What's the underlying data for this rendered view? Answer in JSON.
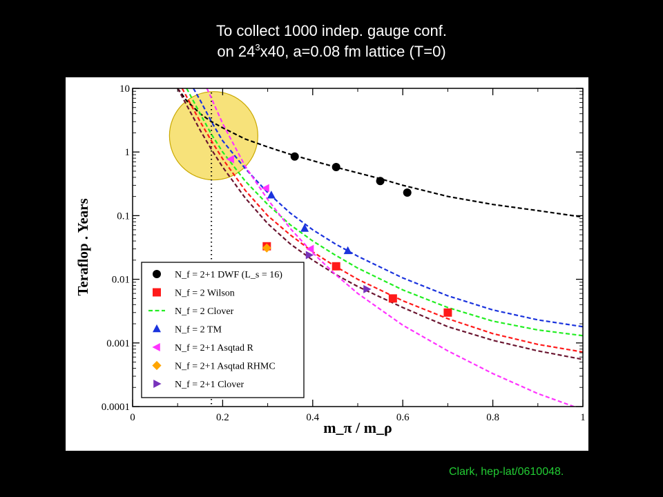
{
  "title": {
    "line1": "To collect 1000 indep. gauge conf.",
    "line2_pre": "on 24",
    "line2_sup": "3",
    "line2_post": "x40, a=0.08 fm lattice (T=0)"
  },
  "citation": "Clark, hep-lat/0610048.",
  "colors": {
    "background": "#000000",
    "plot_bg": "#ffffff",
    "dwf": "#000000",
    "wilson": "#ff1a1a",
    "clover2": "#22ee22",
    "tm": "#1a33dd",
    "asqtad_r": "#ff33ff",
    "asqtad_rhmc": "#ffa500",
    "clover21": "#7733bb",
    "clover21_curve": "#6a1530",
    "highlight_fill": "#f7e27a",
    "highlight_stroke": "#c9a800",
    "citation": "#22cc33"
  },
  "chart_data": {
    "type": "scatter",
    "xlabel": "m_π / m_ρ",
    "ylabel": "Teraflop . Years",
    "xlim": [
      0,
      1
    ],
    "ylim": [
      0.0001,
      10
    ],
    "yscale": "log",
    "x_ticks": [
      "0",
      "0.2",
      "0.4",
      "0.6",
      "0.8",
      "1"
    ],
    "y_ticks": [
      "10",
      "1",
      "0.1",
      "0.01",
      "0.001",
      "0.0001"
    ],
    "legend_position": "bottom-left",
    "reference_line_x": 0.175,
    "highlight_circle": {
      "x": 0.18,
      "y": 1.8
    },
    "legend": [
      {
        "marker": "circle",
        "color": "#000000",
        "label": "N_f = 2+1 DWF (L_s = 16)"
      },
      {
        "marker": "square",
        "color": "#ff1a1a",
        "label": "N_f = 2 Wilson"
      },
      {
        "marker": "dash",
        "color": "#22ee22",
        "label": "N_f = 2 Clover"
      },
      {
        "marker": "triangle-up",
        "color": "#1a33dd",
        "label": "N_f = 2 TM"
      },
      {
        "marker": "triangle-left",
        "color": "#ff33ff",
        "label": "N_f = 2+1 Asqtad R"
      },
      {
        "marker": "diamond",
        "color": "#ffa500",
        "label": "N_f = 2+1 Asqtad RHMC"
      },
      {
        "marker": "triangle-right",
        "color": "#7733bb",
        "label": "N_f = 2+1 Clover"
      }
    ],
    "series": [
      {
        "name": "N_f = 2+1 DWF (L_s = 16)",
        "marker": "circle",
        "color": "#000000",
        "points": [
          [
            0.36,
            0.85
          ],
          [
            0.452,
            0.58
          ],
          [
            0.55,
            0.35
          ],
          [
            0.61,
            0.23
          ]
        ]
      },
      {
        "name": "N_f = 2 Wilson",
        "marker": "square",
        "color": "#ff1a1a",
        "points": [
          [
            0.298,
            0.033
          ],
          [
            0.452,
            0.016
          ],
          [
            0.578,
            0.005
          ],
          [
            0.7,
            0.003
          ]
        ]
      },
      {
        "name": "N_f = 2 TM",
        "marker": "triangle-up",
        "color": "#1a33dd",
        "points": [
          [
            0.308,
            0.21
          ],
          [
            0.382,
            0.063
          ],
          [
            0.478,
            0.028
          ]
        ]
      },
      {
        "name": "N_f = 2+1 Asqtad R",
        "marker": "triangle-left",
        "color": "#ff33ff",
        "points": [
          [
            0.218,
            0.77
          ],
          [
            0.296,
            0.27
          ],
          [
            0.395,
            0.03
          ]
        ]
      },
      {
        "name": "N_f = 2+1 Asqtad RHMC",
        "marker": "diamond",
        "color": "#ffa500",
        "points": [
          [
            0.298,
            0.031
          ]
        ]
      },
      {
        "name": "N_f = 2+1 Clover",
        "marker": "triangle-right",
        "color": "#7733bb",
        "points": [
          [
            0.392,
            0.024
          ],
          [
            0.52,
            0.007
          ]
        ]
      }
    ],
    "fit_curves": [
      {
        "color": "#000000",
        "points": [
          [
            0.1,
            10
          ],
          [
            0.12,
            6.4
          ],
          [
            0.15,
            4.0
          ],
          [
            0.175,
            3.0
          ],
          [
            0.2,
            2.4
          ],
          [
            0.25,
            1.6
          ],
          [
            0.3,
            1.2
          ],
          [
            0.35,
            0.92
          ],
          [
            0.4,
            0.73
          ],
          [
            0.45,
            0.58
          ],
          [
            0.5,
            0.47
          ],
          [
            0.55,
            0.38
          ],
          [
            0.6,
            0.3
          ],
          [
            0.7,
            0.2
          ],
          [
            0.8,
            0.15
          ],
          [
            0.9,
            0.12
          ],
          [
            1.0,
            0.095
          ]
        ]
      },
      {
        "color": "#1a33dd",
        "points": [
          [
            0.135,
            10
          ],
          [
            0.15,
            6.5
          ],
          [
            0.175,
            3.0
          ],
          [
            0.2,
            1.5
          ],
          [
            0.25,
            0.55
          ],
          [
            0.3,
            0.23
          ],
          [
            0.35,
            0.11
          ],
          [
            0.4,
            0.06
          ],
          [
            0.45,
            0.036
          ],
          [
            0.5,
            0.023
          ],
          [
            0.6,
            0.0105
          ],
          [
            0.7,
            0.0055
          ],
          [
            0.8,
            0.0033
          ],
          [
            0.9,
            0.0023
          ],
          [
            1.0,
            0.0018
          ]
        ]
      },
      {
        "color": "#22ee22",
        "points": [
          [
            0.12,
            10
          ],
          [
            0.15,
            4.0
          ],
          [
            0.175,
            1.9
          ],
          [
            0.2,
            1.0
          ],
          [
            0.25,
            0.35
          ],
          [
            0.3,
            0.15
          ],
          [
            0.35,
            0.072
          ],
          [
            0.4,
            0.04
          ],
          [
            0.45,
            0.024
          ],
          [
            0.5,
            0.015
          ],
          [
            0.6,
            0.0068
          ],
          [
            0.7,
            0.0036
          ],
          [
            0.8,
            0.0022
          ],
          [
            0.9,
            0.0016
          ],
          [
            1.0,
            0.0013
          ]
        ]
      },
      {
        "color": "#ff1a1a",
        "points": [
          [
            0.11,
            10
          ],
          [
            0.15,
            3.0
          ],
          [
            0.175,
            1.5
          ],
          [
            0.2,
            0.78
          ],
          [
            0.25,
            0.25
          ],
          [
            0.3,
            0.1
          ],
          [
            0.35,
            0.05
          ],
          [
            0.4,
            0.027
          ],
          [
            0.45,
            0.016
          ],
          [
            0.5,
            0.01
          ],
          [
            0.6,
            0.0046
          ],
          [
            0.7,
            0.0024
          ],
          [
            0.8,
            0.0014
          ],
          [
            0.9,
            0.00095
          ],
          [
            1.0,
            0.00072
          ]
        ]
      },
      {
        "color": "#6a1530",
        "points": [
          [
            0.1,
            10
          ],
          [
            0.15,
            2.2
          ],
          [
            0.175,
            1.1
          ],
          [
            0.2,
            0.58
          ],
          [
            0.25,
            0.19
          ],
          [
            0.3,
            0.075
          ],
          [
            0.35,
            0.036
          ],
          [
            0.4,
            0.02
          ],
          [
            0.45,
            0.012
          ],
          [
            0.5,
            0.0077
          ],
          [
            0.6,
            0.0036
          ],
          [
            0.7,
            0.0018
          ],
          [
            0.8,
            0.0011
          ],
          [
            0.9,
            0.00075
          ],
          [
            1.0,
            0.00055
          ]
        ]
      },
      {
        "color": "#ff33ff",
        "points": [
          [
            0.165,
            10
          ],
          [
            0.175,
            7.0
          ],
          [
            0.2,
            2.8
          ],
          [
            0.25,
            0.6
          ],
          [
            0.3,
            0.18
          ],
          [
            0.35,
            0.063
          ],
          [
            0.4,
            0.026
          ],
          [
            0.45,
            0.012
          ],
          [
            0.5,
            0.006
          ],
          [
            0.6,
            0.0019
          ],
          [
            0.7,
            0.00075
          ],
          [
            0.8,
            0.00033
          ],
          [
            0.9,
            0.00016
          ],
          [
            0.98,
            0.0001
          ]
        ]
      }
    ]
  }
}
